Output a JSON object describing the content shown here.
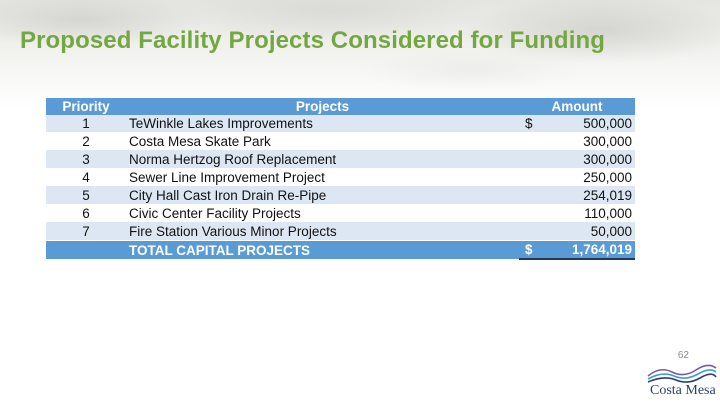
{
  "slide": {
    "title": "Proposed Facility Projects Considered for Funding",
    "page_number": "62"
  },
  "table": {
    "headers": {
      "priority": "Priority",
      "projects": "Projects",
      "amount": "Amount"
    },
    "rows": [
      {
        "priority": "1",
        "project": "TeWinkle Lakes Improvements",
        "currency": "$",
        "amount": "500,000"
      },
      {
        "priority": "2",
        "project": "Costa Mesa Skate Park",
        "currency": "",
        "amount": "300,000"
      },
      {
        "priority": "3",
        "project": "Norma Hertzog Roof Replacement",
        "currency": "",
        "amount": "300,000"
      },
      {
        "priority": "4",
        "project": "Sewer Line Improvement Project",
        "currency": "",
        "amount": "250,000"
      },
      {
        "priority": "5",
        "project": "City Hall Cast Iron Drain Re-Pipe",
        "currency": "",
        "amount": "254,019"
      },
      {
        "priority": "6",
        "project": "Civic Center Facility Projects",
        "currency": "",
        "amount": "110,000"
      },
      {
        "priority": "7",
        "project": "Fire Station Various Minor Projects",
        "currency": "",
        "amount": "50,000"
      }
    ],
    "total": {
      "label": "TOTAL CAPITAL PROJECTS",
      "currency": "$",
      "amount": "1,764,019"
    }
  },
  "logo": {
    "text": "Costa Mesa",
    "colors": {
      "blue": "#2b3f73",
      "teal": "#3aa0c8",
      "purple": "#7a5aa6"
    }
  },
  "colors": {
    "title": "#72a83f",
    "header_bg": "#5b9bd5",
    "band": "#dde7f3"
  }
}
